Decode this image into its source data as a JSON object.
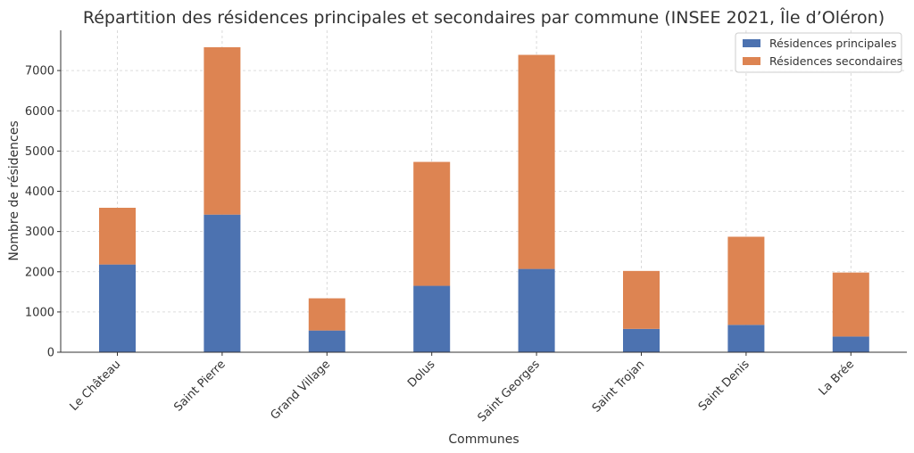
{
  "chart_data": {
    "type": "bar",
    "stacked": true,
    "title": "Répartition des résidences principales et secondaires par commune (INSEE 2021, Île d’Oléron)",
    "xlabel": "Communes",
    "ylabel": "Nombre de résidences",
    "categories": [
      "Le Château",
      "Saint Pierre",
      "Grand Village",
      "Dolus",
      "Saint Georges",
      "Saint Trojan",
      "Saint Denis",
      "La Brée"
    ],
    "series": [
      {
        "name": "Résidences principales",
        "color": "#4c72b0",
        "values": [
          2180,
          3420,
          540,
          1650,
          2070,
          580,
          680,
          390
        ]
      },
      {
        "name": "Résidences secondaires",
        "color": "#dd8452",
        "values": [
          1410,
          4160,
          800,
          3080,
          5320,
          1440,
          2190,
          1590
        ]
      }
    ],
    "ylim": [
      0,
      8000
    ],
    "yticks": [
      0,
      1000,
      2000,
      3000,
      4000,
      5000,
      6000,
      7000
    ],
    "grid": true,
    "legend_position": "top-right"
  }
}
